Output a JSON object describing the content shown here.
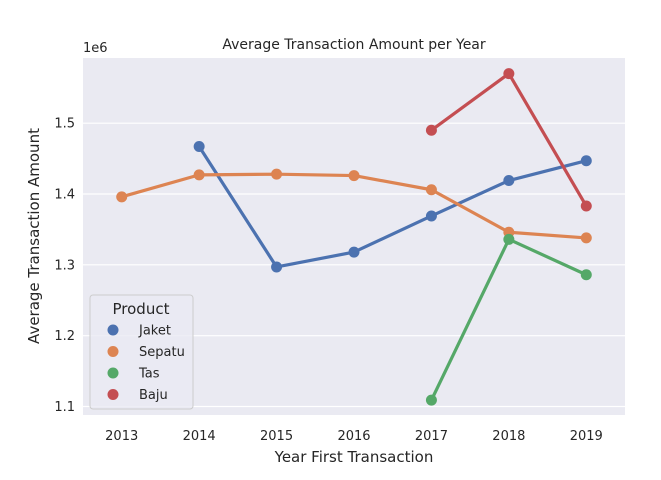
{
  "chart_data": {
    "type": "line",
    "title": "Average Transaction Amount per Year",
    "xlabel": "Year First Transaction",
    "ylabel": "Average Transaction Amount",
    "y_multiplier_label": "1e6",
    "categories": [
      "2013",
      "2014",
      "2015",
      "2016",
      "2017",
      "2018",
      "2019"
    ],
    "yticks": [
      1.1,
      1.2,
      1.3,
      1.4,
      1.5
    ],
    "ytick_labels": [
      "1.1",
      "1.2",
      "1.3",
      "1.4",
      "1.5"
    ],
    "ylim": [
      1.088,
      1.592
    ],
    "grid": true,
    "legend": {
      "title": "Product",
      "placement": "lower-left"
    },
    "series": [
      {
        "name": "Jaket",
        "color": "#4c72b0",
        "values": [
          null,
          1.467,
          1.297,
          1.318,
          1.369,
          1.419,
          1.447
        ]
      },
      {
        "name": "Sepatu",
        "color": "#dd8452",
        "values": [
          1.396,
          1.427,
          1.428,
          1.426,
          1.406,
          1.346,
          1.338
        ]
      },
      {
        "name": "Tas",
        "color": "#55a868",
        "values": [
          null,
          null,
          null,
          null,
          1.109,
          1.336,
          1.286
        ]
      },
      {
        "name": "Baju",
        "color": "#c44e52",
        "values": [
          null,
          null,
          null,
          null,
          1.49,
          1.57,
          1.383
        ]
      }
    ]
  }
}
